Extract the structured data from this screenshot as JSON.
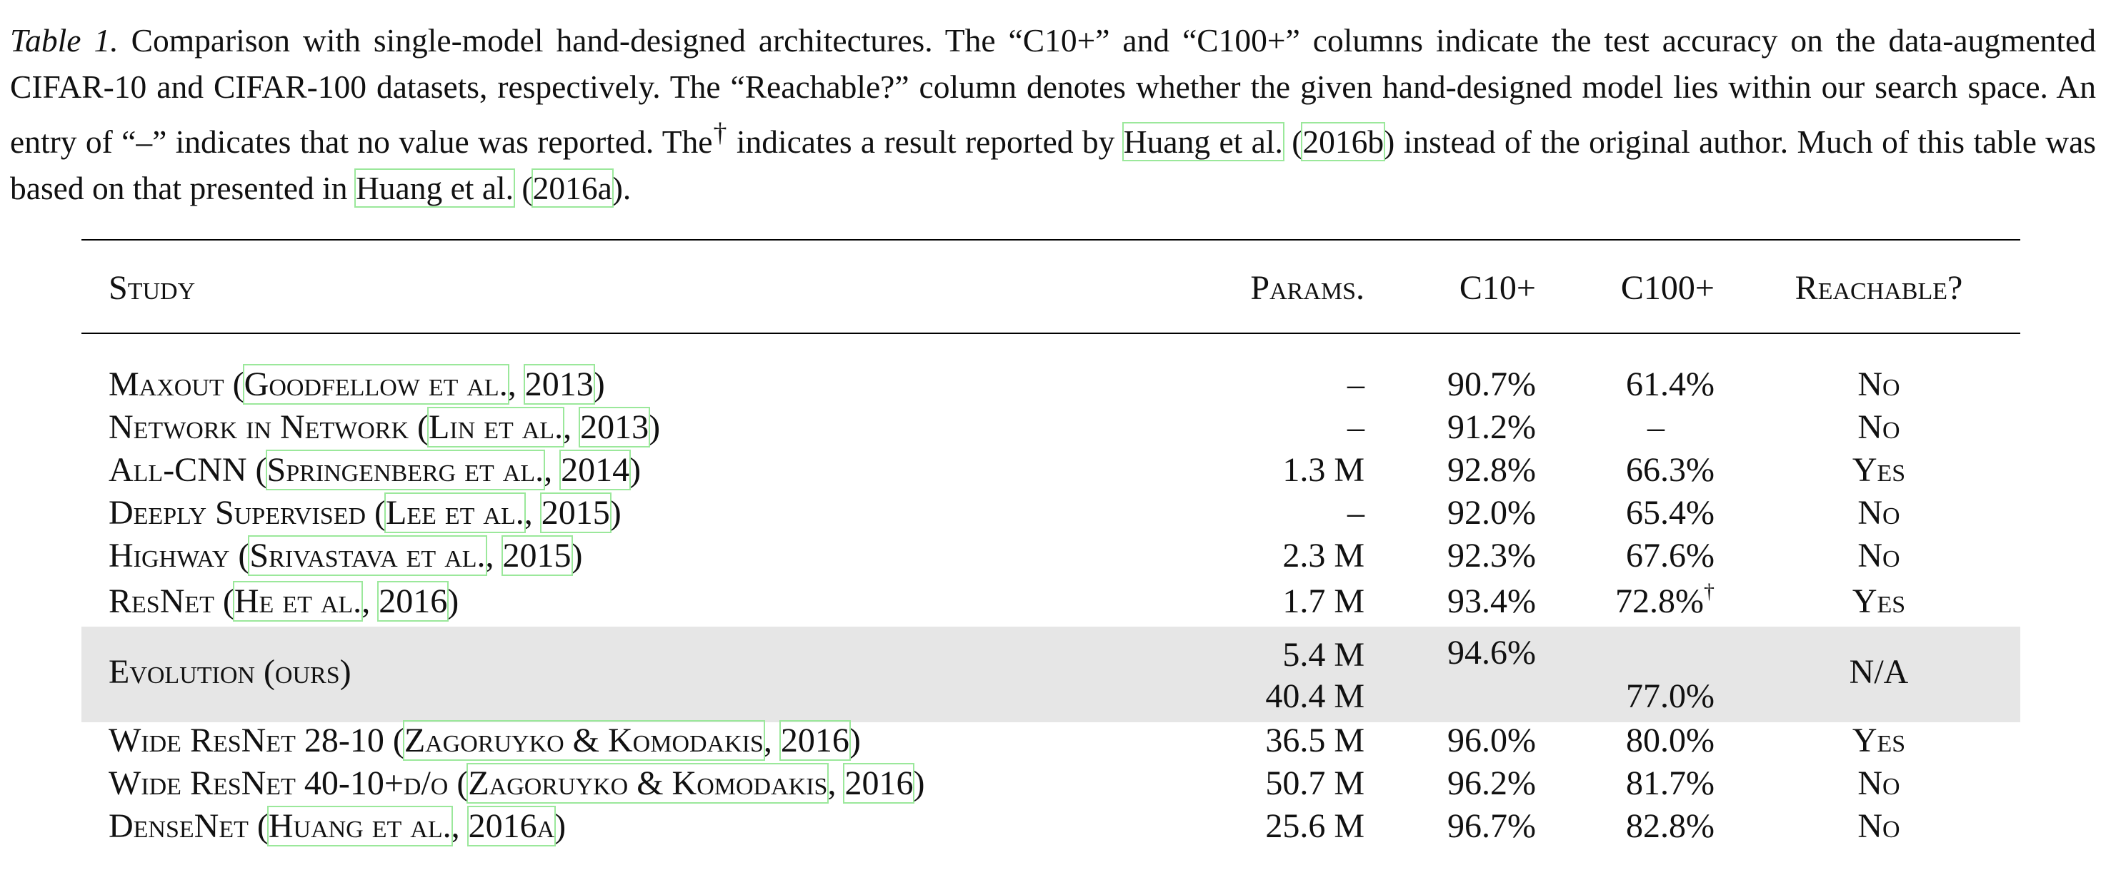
{
  "caption": {
    "label": "Table 1.",
    "text_1": "Comparison with single-model hand-designed architectures. The “C10+” and “C100+” columns indicate the test accuracy on the data-augmented CIFAR-10 and CIFAR-100 datasets, respectively. The “Reachable?” column denotes whether the given hand-designed model lies within our search space. An entry of “–” indicates that no value was reported. The",
    "dagger": "†",
    "text_2": "indicates a result reported by",
    "ref1_authors": "Huang et al.",
    "ref1_year": "2016b",
    "text_3": "instead of the original author. Much of this table was based on that presented in",
    "ref2_authors": "Huang et al.",
    "ref2_year": "2016a",
    "text_end": ")."
  },
  "table": {
    "headers": {
      "study": "Study",
      "params": "Params.",
      "c10": "C10+",
      "c100": "C100+",
      "reachable": "Reachable?"
    },
    "rows": [
      {
        "name": "Maxout",
        "cite_authors": "Goodfellow et al.",
        "cite_year": "2013",
        "params": "–",
        "c10": "90.7%",
        "c100": "61.4%",
        "c100_mark": "",
        "reachable": "No"
      },
      {
        "name": "Network in Network",
        "cite_authors": "Lin et al.",
        "cite_year": "2013",
        "params": "–",
        "c10": "91.2%",
        "c100": "–",
        "c100_mark": "",
        "reachable": "No"
      },
      {
        "name": "All-CNN",
        "cite_authors": "Springenberg et al.",
        "cite_year": "2014",
        "params": "1.3 M",
        "c10": "92.8%",
        "c100": "66.3%",
        "c100_mark": "",
        "reachable": "Yes"
      },
      {
        "name": "Deeply Supervised",
        "cite_authors": "Lee et al.",
        "cite_year": "2015",
        "params": "–",
        "c10": "92.0%",
        "c100": "65.4%",
        "c100_mark": "",
        "reachable": "No"
      },
      {
        "name": "Highway",
        "cite_authors": "Srivastava et al.",
        "cite_year": "2015",
        "params": "2.3 M",
        "c10": "92.3%",
        "c100": "67.6%",
        "c100_mark": "",
        "reachable": "No"
      },
      {
        "name": "ResNet",
        "cite_authors": "He et al.",
        "cite_year": "2016",
        "params": "1.7 M",
        "c10": "93.4%",
        "c100": "72.8%",
        "c100_mark": "†",
        "reachable": "Yes"
      }
    ],
    "ours": {
      "name": "Evolution (ours)",
      "params_1": "5.4 M",
      "params_2": "40.4 M",
      "c10": "94.6%",
      "c100": "77.0%",
      "reachable": "N/A"
    },
    "rows_after": [
      {
        "name": "Wide ResNet 28-10",
        "cite_authors": "Zagoruyko & Komodakis",
        "cite_year": "2016",
        "params": "36.5 M",
        "c10": "96.0%",
        "c100": "80.0%",
        "reachable": "Yes"
      },
      {
        "name": "Wide ResNet 40-10+d/o",
        "cite_authors": "Zagoruyko & Komodakis",
        "cite_year": "2016",
        "params": "50.7 M",
        "c10": "96.2%",
        "c100": "81.7%",
        "reachable": "No"
      },
      {
        "name": "DenseNet",
        "cite_authors": "Huang et al.",
        "cite_year": "2016a",
        "params": "25.6 M",
        "c10": "96.7%",
        "c100": "82.8%",
        "reachable": "No"
      }
    ]
  }
}
